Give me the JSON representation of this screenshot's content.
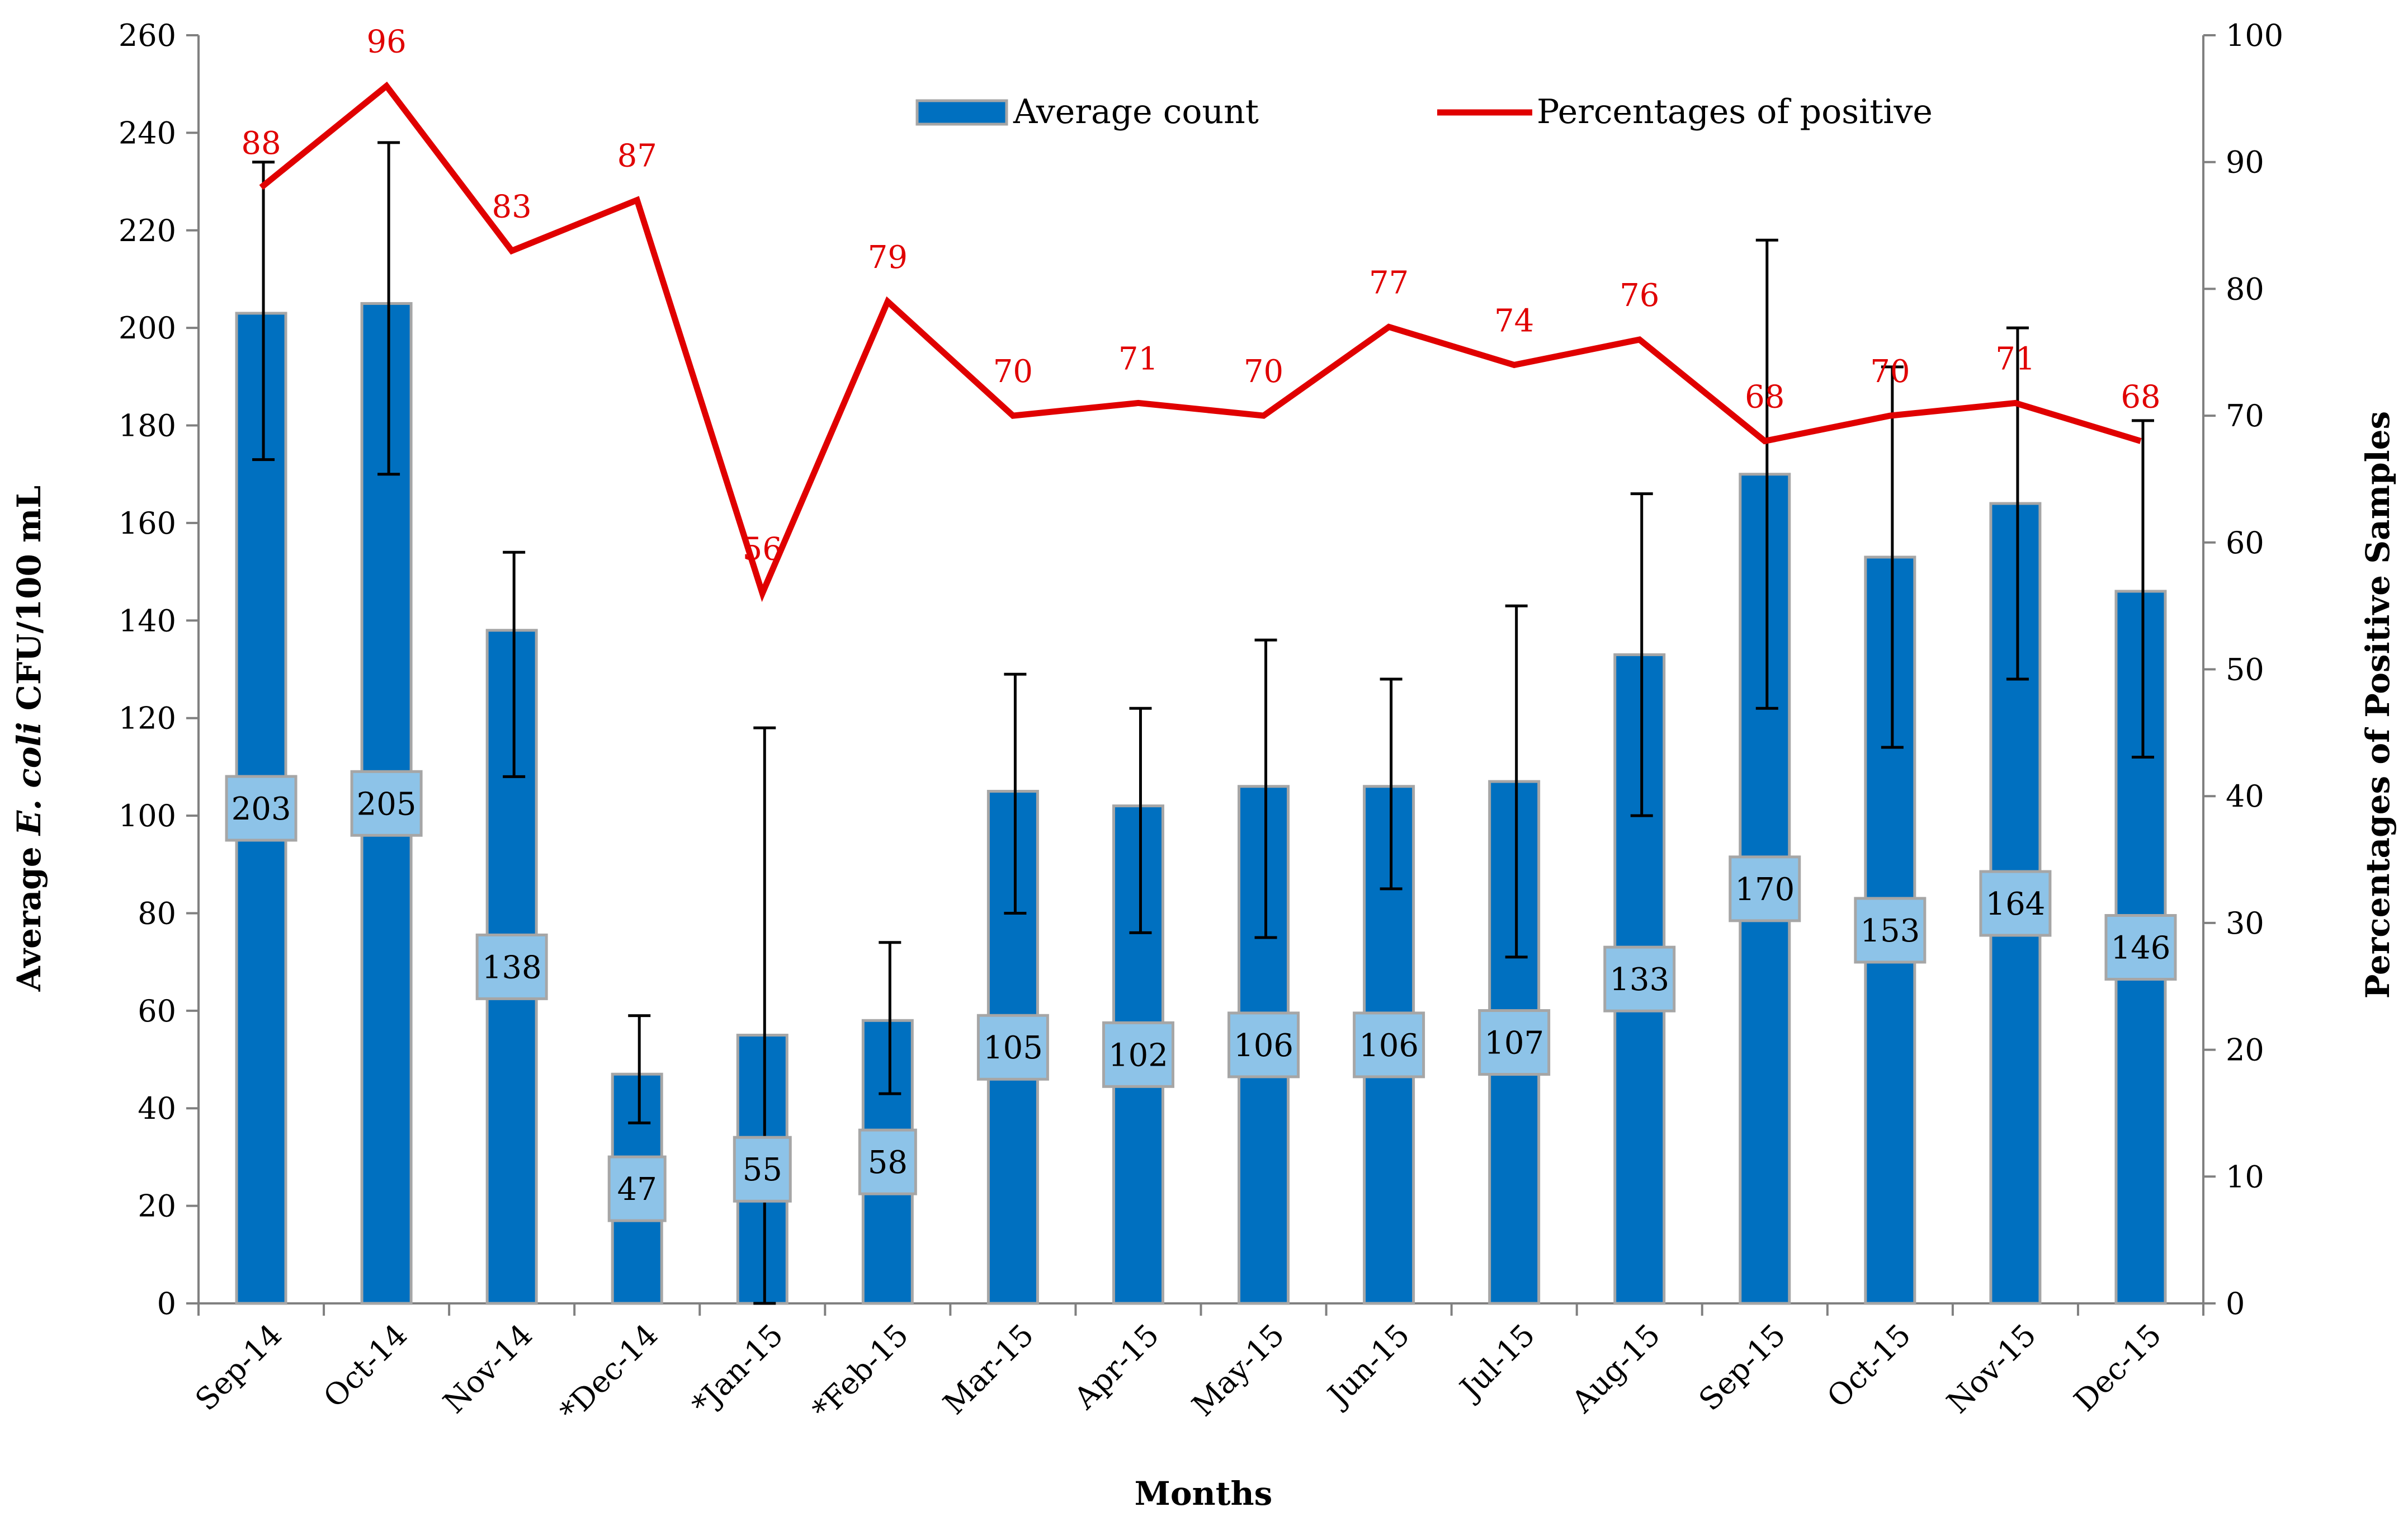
{
  "chart_data": {
    "type": "bar",
    "categories": [
      "Sep-14",
      "Oct-14",
      "Nov-14",
      "*Dec-14",
      "*Jan-15",
      "*Feb-15",
      "Mar-15",
      "Apr-15",
      "May-15",
      "Jun-15",
      "Jul-15",
      "Aug-15",
      "Sep-15",
      "Oct-15",
      "Nov-15",
      "Dec-15"
    ],
    "series": [
      {
        "name": "Average count",
        "axis": "left",
        "kind": "bar",
        "values": [
          203,
          205,
          138,
          47,
          55,
          58,
          105,
          102,
          106,
          106,
          107,
          133,
          170,
          153,
          164,
          146
        ],
        "data_labels": [
          "203",
          "205",
          "138",
          "47",
          "55",
          "58",
          "105",
          "102",
          "106",
          "106",
          "107",
          "133",
          "170",
          "153",
          "164",
          "146"
        ],
        "error_low": [
          173,
          170,
          108,
          37,
          0,
          43,
          80,
          76,
          75,
          85,
          71,
          100,
          122,
          114,
          128,
          112
        ],
        "error_high": [
          234,
          238,
          154,
          59,
          118,
          74,
          129,
          122,
          136,
          128,
          143,
          166,
          218,
          192,
          200,
          181
        ],
        "color": "#0070c0"
      },
      {
        "name": "Percentages of positive",
        "axis": "right",
        "kind": "line",
        "values": [
          88,
          96,
          83,
          87,
          56,
          79,
          70,
          71,
          70,
          77,
          74,
          76,
          68,
          70,
          71,
          68
        ],
        "data_labels": [
          "88",
          "96",
          "83",
          "87",
          "56",
          "79",
          "70",
          "71",
          "70",
          "77",
          "74",
          "76",
          "68",
          "70",
          "71",
          "68"
        ],
        "color": "#e00000"
      }
    ],
    "xlabel": "Months",
    "ylabel_left_prefix": "Average ",
    "ylabel_left_italic": "E. coli",
    "ylabel_left_suffix": " CFU/100 mL",
    "ylabel_right": "Percentages of Positive Samples",
    "ylim_left": [
      0,
      260
    ],
    "yticks_left": [
      "0",
      "20",
      "40",
      "60",
      "80",
      "100",
      "120",
      "140",
      "160",
      "180",
      "200",
      "220",
      "240",
      "260"
    ],
    "ylim_right": [
      0,
      100
    ],
    "yticks_right": [
      "0",
      "10",
      "20",
      "30",
      "40",
      "50",
      "60",
      "70",
      "80",
      "90",
      "100"
    ],
    "legend": [
      "Average count",
      "Percentages of positive"
    ],
    "legend_position": "top-center",
    "label_box_color": "#8dc3e8",
    "grid": false
  }
}
